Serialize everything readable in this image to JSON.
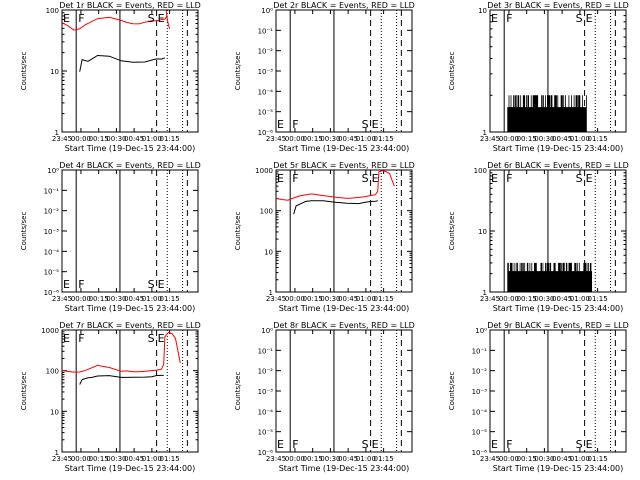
{
  "chart_data": [
    {
      "type": "line",
      "panel": "Det 1r",
      "title": "Det 1r BLACK = Events, RED = LLD",
      "ylabel": "Counts/sec",
      "xlabel": "Start Time (19-Dec-15 23:44:00)",
      "x_ticks": [
        "23:45",
        "00:00",
        "00:15",
        "00:30",
        "00:45",
        "01:00",
        "01:15"
      ],
      "y_ticks": [
        "1",
        "10",
        "100"
      ],
      "ylim": [
        1,
        100
      ],
      "markers": {
        "E": "23:44",
        "F": "23:57",
        "S": "00:58",
        "E2": "01:00"
      },
      "series": [
        {
          "color": "#ff0000",
          "x_min": [
            0,
            5,
            10,
            15,
            20,
            30,
            40,
            50,
            55,
            60,
            65,
            70,
            76,
            80,
            84,
            87,
            89
          ],
          "values": [
            62,
            55,
            48,
            50,
            58,
            72,
            78,
            66,
            62,
            60,
            60,
            62,
            66,
            68,
            70,
            72,
            80
          ]
        },
        {
          "color": "#ff0000",
          "x_min": [
            88,
            89,
            90,
            91
          ],
          "values": [
            100,
            70,
            58,
            50
          ]
        },
        {
          "color": "#000000",
          "x_min": [
            15,
            17,
            22,
            25,
            30,
            40,
            50,
            60,
            70,
            76,
            80,
            84,
            87
          ],
          "values": [
            10,
            15,
            14,
            16,
            18,
            17,
            15,
            14,
            14,
            15,
            16,
            16,
            16
          ]
        }
      ]
    },
    {
      "type": "line",
      "panel": "Det 2r",
      "title": "Det 2r BLACK = Events, RED = LLD",
      "ylabel": "Counts/sec",
      "xlabel": "Start Time (19-Dec-15 23:44:00)",
      "x_ticks": [
        "23:45",
        "00:00",
        "00:15",
        "00:30",
        "00:45",
        "01:00",
        "01:15"
      ],
      "y_ticks": [
        "10⁻⁶",
        "10⁻⁵",
        "10⁻⁴",
        "10⁻³",
        "10⁻²",
        "10⁻¹",
        "10⁰"
      ],
      "ylim": [
        1e-06,
        1
      ],
      "markers": {
        "E": "23:44",
        "F": "23:57",
        "S": "00:58",
        "E2": "01:00"
      },
      "series": []
    },
    {
      "type": "line",
      "panel": "Det 3r",
      "title": "Det 3r BLACK = Events, RED = LLD",
      "ylabel": "Counts/sec",
      "xlabel": "Start Time (19-Dec-15 23:44:00)",
      "x_ticks": [
        "23:45",
        "00:00",
        "00:15",
        "00:30",
        "00:45",
        "01:00",
        "01:15"
      ],
      "y_ticks": [
        "1",
        "10"
      ],
      "ylim": [
        1,
        10
      ],
      "markers": {
        "E": "23:44",
        "F": "23:57",
        "S": "00:58",
        "E2": "01:00"
      },
      "series": [
        {
          "color": "#000000",
          "style": "spikes",
          "x_range": [
            15,
            82
          ],
          "values": [
            1,
            2
          ]
        }
      ]
    },
    {
      "type": "line",
      "panel": "Det 4r",
      "title": "Det 4r BLACK = Events, RED = LLD",
      "ylabel": "Counts/sec",
      "xlabel": "Start Time (19-Dec-15 23:44:00)",
      "x_ticks": [
        "23:45",
        "00:00",
        "00:15",
        "00:30",
        "00:45",
        "01:00",
        "01:15"
      ],
      "y_ticks": [
        "10⁻⁶",
        "10⁻⁵",
        "10⁻⁴",
        "10⁻³",
        "10⁻²",
        "10⁻¹",
        "10⁰"
      ],
      "ylim": [
        1e-06,
        1
      ],
      "markers": {
        "E": "23:44",
        "F": "23:57",
        "S": "00:58",
        "E2": "01:00"
      },
      "series": []
    },
    {
      "type": "line",
      "panel": "Det 5r",
      "title": "Det 5r BLACK = Events, RED = LLD",
      "ylabel": "Counts/sec",
      "xlabel": "Start Time (19-Dec-15 23:44:00)",
      "x_ticks": [
        "23:45",
        "00:00",
        "00:15",
        "00:30",
        "00:45",
        "01:00",
        "01:15"
      ],
      "y_ticks": [
        "1",
        "10",
        "100",
        "1000"
      ],
      "ylim": [
        1,
        1000
      ],
      "markers": {
        "E": "23:44",
        "F": "23:57",
        "S": "00:58",
        "E2": "01:00"
      },
      "series": [
        {
          "color": "#ff0000",
          "x_min": [
            0,
            5,
            10,
            15,
            20,
            30,
            40,
            50,
            55,
            60,
            65,
            70,
            75,
            80,
            84,
            86,
            87,
            90,
            93,
            96,
            100
          ],
          "values": [
            200,
            190,
            180,
            200,
            230,
            260,
            240,
            210,
            205,
            200,
            200,
            210,
            220,
            230,
            240,
            300,
            900,
            950,
            900,
            800,
            400
          ]
        },
        {
          "color": "#000000",
          "x_min": [
            15,
            17,
            22,
            25,
            30,
            40,
            50,
            60,
            70,
            76,
            80,
            84,
            86
          ],
          "values": [
            80,
            130,
            150,
            170,
            180,
            170,
            160,
            150,
            150,
            160,
            165,
            170,
            175
          ]
        }
      ]
    },
    {
      "type": "line",
      "panel": "Det 6r",
      "title": "Det 6r BLACK = Events, RED = LLD",
      "ylabel": "Counts/sec",
      "xlabel": "Start Time (19-Dec-15 23:44:00)",
      "x_ticks": [
        "23:45",
        "00:00",
        "00:15",
        "00:30",
        "00:45",
        "01:00",
        "01:15"
      ],
      "y_ticks": [
        "1",
        "10",
        "100"
      ],
      "ylim": [
        1,
        100
      ],
      "markers": {
        "E": "23:44",
        "F": "23:57",
        "S": "00:58",
        "E2": "01:00"
      },
      "series": [
        {
          "color": "#000000",
          "style": "spikes",
          "x_range": [
            15,
            86
          ],
          "values": [
            1,
            3
          ]
        }
      ]
    },
    {
      "type": "line",
      "panel": "Det 7r",
      "title": "Det 7r BLACK = Events, RED = LLD",
      "ylabel": "Counts/sec",
      "xlabel": "Start Time (19-Dec-15 23:44:00)",
      "x_ticks": [
        "23:45",
        "00:00",
        "00:15",
        "00:30",
        "00:45",
        "01:00",
        "01:15"
      ],
      "y_ticks": [
        "1",
        "10",
        "100",
        "1000"
      ],
      "ylim": [
        1,
        1000
      ],
      "markers": {
        "E": "23:44",
        "F": "23:57",
        "S": "00:58",
        "E2": "01:00"
      },
      "series": [
        {
          "color": "#ff0000",
          "x_min": [
            0,
            5,
            10,
            15,
            20,
            30,
            40,
            50,
            55,
            60,
            65,
            70,
            75,
            80,
            84,
            86,
            87,
            90,
            93,
            96,
            100
          ],
          "values": [
            100,
            95,
            92,
            95,
            105,
            135,
            120,
            100,
            98,
            96,
            96,
            98,
            100,
            102,
            105,
            140,
            700,
            900,
            800,
            600,
            150
          ]
        },
        {
          "color": "#000000",
          "x_min": [
            15,
            17,
            22,
            25,
            30,
            40,
            50,
            60,
            70,
            76,
            80,
            84,
            86
          ],
          "values": [
            45,
            60,
            65,
            70,
            75,
            75,
            70,
            68,
            70,
            72,
            74,
            76,
            78
          ]
        }
      ]
    },
    {
      "type": "line",
      "panel": "Det 8r",
      "title": "Det 8r BLACK = Events, RED = LLD",
      "ylabel": "Counts/sec",
      "xlabel": "Start Time (19-Dec-15 23:44:00)",
      "x_ticks": [
        "23:45",
        "00:00",
        "00:15",
        "00:30",
        "00:45",
        "01:00",
        "01:15"
      ],
      "y_ticks": [
        "10⁻⁶",
        "10⁻⁵",
        "10⁻⁴",
        "10⁻³",
        "10⁻²",
        "10⁻¹",
        "10⁰"
      ],
      "ylim": [
        1e-06,
        1
      ],
      "markers": {
        "E": "23:44",
        "F": "23:57",
        "S": "00:58",
        "E2": "01:00"
      },
      "series": []
    },
    {
      "type": "line",
      "panel": "Det 9r",
      "title": "Det 9r BLACK = Events, RED = LLD",
      "ylabel": "Counts/sec",
      "xlabel": "Start Time (19-Dec-15 23:44:00)",
      "x_ticks": [
        "23:45",
        "00:00",
        "00:15",
        "00:30",
        "00:45",
        "01:00",
        "01:15"
      ],
      "y_ticks": [
        "10⁻⁶",
        "10⁻⁵",
        "10⁻⁴",
        "10⁻³",
        "10⁻²",
        "10⁻¹",
        "10⁰"
      ],
      "ylim": [
        1e-06,
        1
      ],
      "markers": {
        "E": "23:44",
        "F": "23:57",
        "S": "00:58",
        "E2": "01:00"
      },
      "series": []
    }
  ],
  "vertical_lines": [
    {
      "x_min": 12,
      "style": "solid"
    },
    {
      "x_min": 49,
      "style": "solid"
    },
    {
      "x_min": 80,
      "style": "dashed"
    },
    {
      "x_min": 89,
      "style": "dotted"
    },
    {
      "x_min": 102,
      "style": "dotted"
    },
    {
      "x_min": 106,
      "style": "dashed"
    }
  ]
}
